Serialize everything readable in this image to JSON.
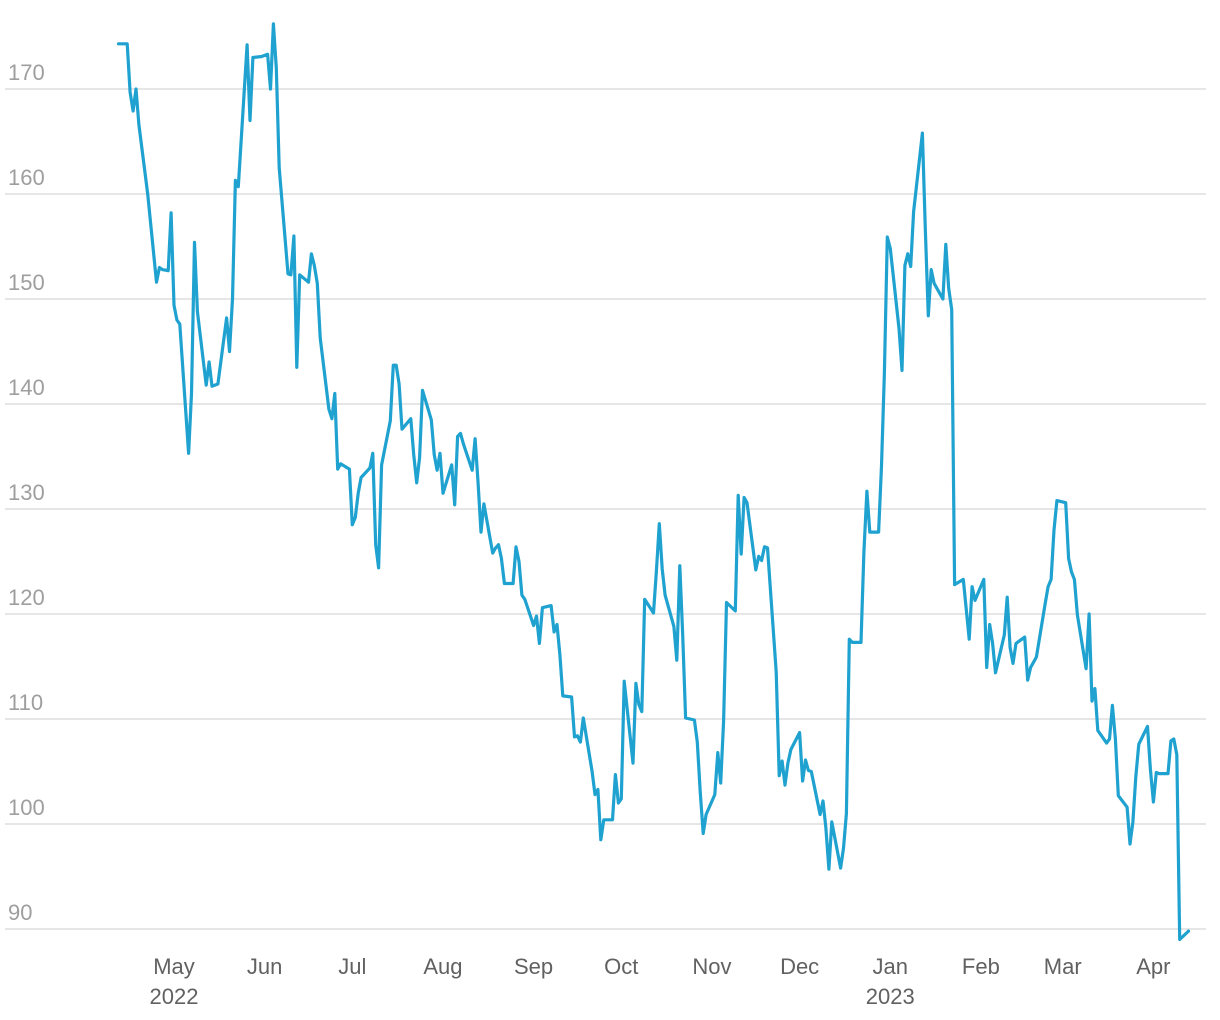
{
  "chart_data": {
    "type": "line",
    "title": "",
    "xlabel": "",
    "ylabel": "",
    "ylim": [
      88,
      177
    ],
    "grid": true,
    "legend": "none",
    "colors": {
      "line": "#1fa2cf",
      "grid": "#dddddd",
      "ytick": "#9e9e9e",
      "xtick": "#616161"
    },
    "yticks": [
      "90",
      "100",
      "110",
      "120",
      "130",
      "140",
      "150",
      "160",
      "170"
    ],
    "xticks": [
      {
        "date": "2022-05-01",
        "label": "May",
        "sublabel": "2022"
      },
      {
        "date": "2022-06-01",
        "label": "Jun"
      },
      {
        "date": "2022-07-01",
        "label": "Jul"
      },
      {
        "date": "2022-08-01",
        "label": "Aug"
      },
      {
        "date": "2022-09-01",
        "label": "Sep"
      },
      {
        "date": "2022-10-01",
        "label": "Oct"
      },
      {
        "date": "2022-11-01",
        "label": "Nov"
      },
      {
        "date": "2022-12-01",
        "label": "Dec"
      },
      {
        "date": "2023-01-01",
        "label": "Jan",
        "sublabel": "2023"
      },
      {
        "date": "2023-02-01",
        "label": "Feb"
      },
      {
        "date": "2023-03-01",
        "label": "Mar"
      },
      {
        "date": "2023-04-01",
        "label": "Apr"
      }
    ],
    "series": [
      {
        "points": [
          [
            "2022-04-12",
            174.3
          ],
          [
            "2022-04-15",
            174.3
          ],
          [
            "2022-04-16",
            169.7
          ],
          [
            "2022-04-17",
            167.9
          ],
          [
            "2022-04-18",
            170.0
          ],
          [
            "2022-04-19",
            166.6
          ],
          [
            "2022-04-22",
            160.0
          ],
          [
            "2022-04-25",
            151.6
          ],
          [
            "2022-04-26",
            153.0
          ],
          [
            "2022-04-27",
            152.8
          ],
          [
            "2022-04-29",
            152.7
          ],
          [
            "2022-04-30",
            158.2
          ],
          [
            "2022-05-01",
            149.4
          ],
          [
            "2022-05-02",
            148.0
          ],
          [
            "2022-05-03",
            147.6
          ],
          [
            "2022-05-06",
            135.3
          ],
          [
            "2022-05-07",
            141.0
          ],
          [
            "2022-05-08",
            155.4
          ],
          [
            "2022-05-09",
            148.8
          ],
          [
            "2022-05-12",
            141.8
          ],
          [
            "2022-05-13",
            144.0
          ],
          [
            "2022-05-14",
            141.7
          ],
          [
            "2022-05-16",
            141.9
          ],
          [
            "2022-05-19",
            148.2
          ],
          [
            "2022-05-20",
            145.0
          ],
          [
            "2022-05-21",
            150.0
          ],
          [
            "2022-05-22",
            161.3
          ],
          [
            "2022-05-23",
            160.7
          ],
          [
            "2022-05-26",
            174.2
          ],
          [
            "2022-05-27",
            167.0
          ],
          [
            "2022-05-28",
            173.0
          ],
          [
            "2022-05-31",
            173.1
          ],
          [
            "2022-06-02",
            173.3
          ],
          [
            "2022-06-03",
            170.0
          ],
          [
            "2022-06-04",
            176.2
          ],
          [
            "2022-06-05",
            172.0
          ],
          [
            "2022-06-06",
            162.5
          ],
          [
            "2022-06-09",
            152.4
          ],
          [
            "2022-06-10",
            152.3
          ],
          [
            "2022-06-11",
            156.0
          ],
          [
            "2022-06-12",
            143.5
          ],
          [
            "2022-06-13",
            152.3
          ],
          [
            "2022-06-16",
            151.6
          ],
          [
            "2022-06-17",
            154.3
          ],
          [
            "2022-06-18",
            153.2
          ],
          [
            "2022-06-19",
            151.5
          ],
          [
            "2022-06-20",
            146.3
          ],
          [
            "2022-06-23",
            139.5
          ],
          [
            "2022-06-24",
            138.6
          ],
          [
            "2022-06-25",
            141.0
          ],
          [
            "2022-06-26",
            133.8
          ],
          [
            "2022-06-27",
            134.3
          ],
          [
            "2022-06-30",
            133.8
          ],
          [
            "2022-07-01",
            128.5
          ],
          [
            "2022-07-02",
            129.2
          ],
          [
            "2022-07-03",
            131.5
          ],
          [
            "2022-07-04",
            133.0
          ],
          [
            "2022-07-07",
            133.9
          ],
          [
            "2022-07-08",
            135.3
          ],
          [
            "2022-07-09",
            126.6
          ],
          [
            "2022-07-10",
            124.4
          ],
          [
            "2022-07-11",
            134.2
          ],
          [
            "2022-07-14",
            138.4
          ],
          [
            "2022-07-15",
            143.7
          ],
          [
            "2022-07-16",
            143.7
          ],
          [
            "2022-07-17",
            141.9
          ],
          [
            "2022-07-18",
            137.6
          ],
          [
            "2022-07-21",
            138.6
          ],
          [
            "2022-07-22",
            135.2
          ],
          [
            "2022-07-23",
            132.5
          ],
          [
            "2022-07-24",
            134.9
          ],
          [
            "2022-07-25",
            141.3
          ],
          [
            "2022-07-28",
            138.5
          ],
          [
            "2022-07-29",
            135.2
          ],
          [
            "2022-07-30",
            133.7
          ],
          [
            "2022-07-31",
            135.3
          ],
          [
            "2022-08-01",
            131.5
          ],
          [
            "2022-08-04",
            134.2
          ],
          [
            "2022-08-05",
            130.4
          ],
          [
            "2022-08-06",
            136.9
          ],
          [
            "2022-08-07",
            137.2
          ],
          [
            "2022-08-08",
            136.2
          ],
          [
            "2022-08-11",
            133.7
          ],
          [
            "2022-08-12",
            136.7
          ],
          [
            "2022-08-13",
            132.6
          ],
          [
            "2022-08-14",
            127.8
          ],
          [
            "2022-08-15",
            130.5
          ],
          [
            "2022-08-18",
            125.8
          ],
          [
            "2022-08-19",
            126.3
          ],
          [
            "2022-08-20",
            126.6
          ],
          [
            "2022-08-21",
            125.3
          ],
          [
            "2022-08-22",
            122.9
          ],
          [
            "2022-08-25",
            122.9
          ],
          [
            "2022-08-26",
            126.4
          ],
          [
            "2022-08-27",
            125.0
          ],
          [
            "2022-08-28",
            121.8
          ],
          [
            "2022-08-29",
            121.4
          ],
          [
            "2022-09-01",
            118.9
          ],
          [
            "2022-09-02",
            119.8
          ],
          [
            "2022-09-03",
            117.2
          ],
          [
            "2022-09-04",
            120.6
          ],
          [
            "2022-09-07",
            120.8
          ],
          [
            "2022-09-08",
            118.3
          ],
          [
            "2022-09-09",
            119.0
          ],
          [
            "2022-09-10",
            116.1
          ],
          [
            "2022-09-11",
            112.2
          ],
          [
            "2022-09-14",
            112.1
          ],
          [
            "2022-09-15",
            108.3
          ],
          [
            "2022-09-16",
            108.4
          ],
          [
            "2022-09-17",
            107.8
          ],
          [
            "2022-09-18",
            110.1
          ],
          [
            "2022-09-21",
            105.0
          ],
          [
            "2022-09-22",
            102.8
          ],
          [
            "2022-09-23",
            103.3
          ],
          [
            "2022-09-24",
            98.5
          ],
          [
            "2022-09-25",
            100.4
          ],
          [
            "2022-09-28",
            100.4
          ],
          [
            "2022-09-29",
            104.7
          ],
          [
            "2022-09-30",
            102.0
          ],
          [
            "2022-10-01",
            102.4
          ],
          [
            "2022-10-02",
            113.6
          ],
          [
            "2022-10-05",
            105.8
          ],
          [
            "2022-10-06",
            113.4
          ],
          [
            "2022-10-07",
            111.4
          ],
          [
            "2022-10-08",
            110.7
          ],
          [
            "2022-10-09",
            121.4
          ],
          [
            "2022-10-12",
            120.1
          ],
          [
            "2022-10-13",
            124.1
          ],
          [
            "2022-10-14",
            128.6
          ],
          [
            "2022-10-15",
            124.3
          ],
          [
            "2022-10-16",
            121.8
          ],
          [
            "2022-10-19",
            118.8
          ],
          [
            "2022-10-20",
            115.6
          ],
          [
            "2022-10-21",
            124.6
          ],
          [
            "2022-10-22",
            118.0
          ],
          [
            "2022-10-23",
            110.1
          ],
          [
            "2022-10-26",
            109.9
          ],
          [
            "2022-10-27",
            107.8
          ],
          [
            "2022-10-28",
            103.1
          ],
          [
            "2022-10-29",
            99.1
          ],
          [
            "2022-10-30",
            100.9
          ],
          [
            "2022-11-02",
            102.8
          ],
          [
            "2022-11-03",
            106.8
          ],
          [
            "2022-11-04",
            103.9
          ],
          [
            "2022-11-05",
            109.8
          ],
          [
            "2022-11-06",
            121.1
          ],
          [
            "2022-11-09",
            120.3
          ],
          [
            "2022-11-10",
            131.3
          ],
          [
            "2022-11-11",
            125.7
          ],
          [
            "2022-11-12",
            131.1
          ],
          [
            "2022-11-13",
            130.6
          ],
          [
            "2022-11-16",
            124.2
          ],
          [
            "2022-11-17",
            125.5
          ],
          [
            "2022-11-18",
            125.1
          ],
          [
            "2022-11-19",
            126.4
          ],
          [
            "2022-11-20",
            126.3
          ],
          [
            "2022-11-23",
            114.5
          ],
          [
            "2022-11-24",
            104.6
          ],
          [
            "2022-11-25",
            106.0
          ],
          [
            "2022-11-26",
            103.7
          ],
          [
            "2022-11-27",
            105.8
          ],
          [
            "2022-11-28",
            107.1
          ],
          [
            "2022-12-01",
            108.7
          ],
          [
            "2022-12-02",
            104.1
          ],
          [
            "2022-12-03",
            106.1
          ],
          [
            "2022-12-04",
            105.1
          ],
          [
            "2022-12-05",
            105.0
          ],
          [
            "2022-12-08",
            100.9
          ],
          [
            "2022-12-09",
            102.2
          ],
          [
            "2022-12-10",
            99.6
          ],
          [
            "2022-12-11",
            95.7
          ],
          [
            "2022-12-12",
            100.2
          ],
          [
            "2022-12-15",
            95.8
          ],
          [
            "2022-12-16",
            97.7
          ],
          [
            "2022-12-17",
            101.0
          ],
          [
            "2022-12-18",
            117.6
          ],
          [
            "2022-12-19",
            117.3
          ],
          [
            "2022-12-22",
            117.3
          ],
          [
            "2022-12-23",
            125.9
          ],
          [
            "2022-12-24",
            131.7
          ],
          [
            "2022-12-25",
            127.8
          ],
          [
            "2022-12-28",
            127.8
          ],
          [
            "2022-12-29",
            134.1
          ],
          [
            "2022-12-30",
            143.0
          ],
          [
            "2022-12-31",
            155.9
          ],
          [
            "2023-01-01",
            154.8
          ],
          [
            "2023-01-04",
            147.2
          ],
          [
            "2023-01-05",
            143.2
          ],
          [
            "2023-01-06",
            153.2
          ],
          [
            "2023-01-07",
            154.3
          ],
          [
            "2023-01-08",
            153.1
          ],
          [
            "2023-01-09",
            158.3
          ],
          [
            "2023-01-12",
            165.8
          ],
          [
            "2023-01-13",
            156.7
          ],
          [
            "2023-01-14",
            148.4
          ],
          [
            "2023-01-15",
            152.8
          ],
          [
            "2023-01-16",
            151.5
          ],
          [
            "2023-01-19",
            150.0
          ],
          [
            "2023-01-20",
            155.2
          ],
          [
            "2023-01-21",
            151.0
          ],
          [
            "2023-01-22",
            149.0
          ],
          [
            "2023-01-23",
            122.8
          ],
          [
            "2023-01-26",
            123.3
          ],
          [
            "2023-01-27",
            120.4
          ],
          [
            "2023-01-28",
            117.6
          ],
          [
            "2023-01-29",
            122.6
          ],
          [
            "2023-01-30",
            121.3
          ],
          [
            "2023-02-02",
            123.3
          ],
          [
            "2023-02-03",
            114.9
          ],
          [
            "2023-02-04",
            119.0
          ],
          [
            "2023-02-05",
            117.2
          ],
          [
            "2023-02-06",
            114.4
          ],
          [
            "2023-02-09",
            118.0
          ],
          [
            "2023-02-10",
            121.6
          ],
          [
            "2023-02-11",
            116.8
          ],
          [
            "2023-02-12",
            115.3
          ],
          [
            "2023-02-13",
            117.2
          ],
          [
            "2023-02-16",
            117.8
          ],
          [
            "2023-02-17",
            113.7
          ],
          [
            "2023-02-18",
            114.9
          ],
          [
            "2023-02-19",
            115.4
          ],
          [
            "2023-02-20",
            115.9
          ],
          [
            "2023-02-23",
            121.0
          ],
          [
            "2023-02-24",
            122.6
          ],
          [
            "2023-02-25",
            123.3
          ],
          [
            "2023-02-26",
            128.0
          ],
          [
            "2023-02-27",
            130.8
          ],
          [
            "2023-03-02",
            130.6
          ],
          [
            "2023-03-03",
            125.3
          ],
          [
            "2023-03-04",
            124.0
          ],
          [
            "2023-03-05",
            123.3
          ],
          [
            "2023-03-06",
            119.9
          ],
          [
            "2023-03-09",
            114.8
          ],
          [
            "2023-03-10",
            120.0
          ],
          [
            "2023-03-11",
            111.7
          ],
          [
            "2023-03-12",
            112.9
          ],
          [
            "2023-03-13",
            108.9
          ],
          [
            "2023-03-16",
            107.7
          ],
          [
            "2023-03-17",
            108.1
          ],
          [
            "2023-03-18",
            111.3
          ],
          [
            "2023-03-19",
            108.1
          ],
          [
            "2023-03-20",
            102.7
          ],
          [
            "2023-03-23",
            101.6
          ],
          [
            "2023-03-24",
            98.1
          ],
          [
            "2023-03-25",
            100.2
          ],
          [
            "2023-03-26",
            104.5
          ],
          [
            "2023-03-27",
            107.6
          ],
          [
            "2023-03-30",
            109.3
          ],
          [
            "2023-03-31",
            105.2
          ],
          [
            "2023-04-01",
            102.1
          ],
          [
            "2023-04-02",
            104.9
          ],
          [
            "2023-04-03",
            104.8
          ],
          [
            "2023-04-06",
            104.8
          ],
          [
            "2023-04-07",
            107.9
          ],
          [
            "2023-04-08",
            108.1
          ],
          [
            "2023-04-09",
            106.6
          ],
          [
            "2023-04-10",
            89.0
          ],
          [
            "2023-04-13",
            89.8
          ]
        ]
      }
    ]
  }
}
